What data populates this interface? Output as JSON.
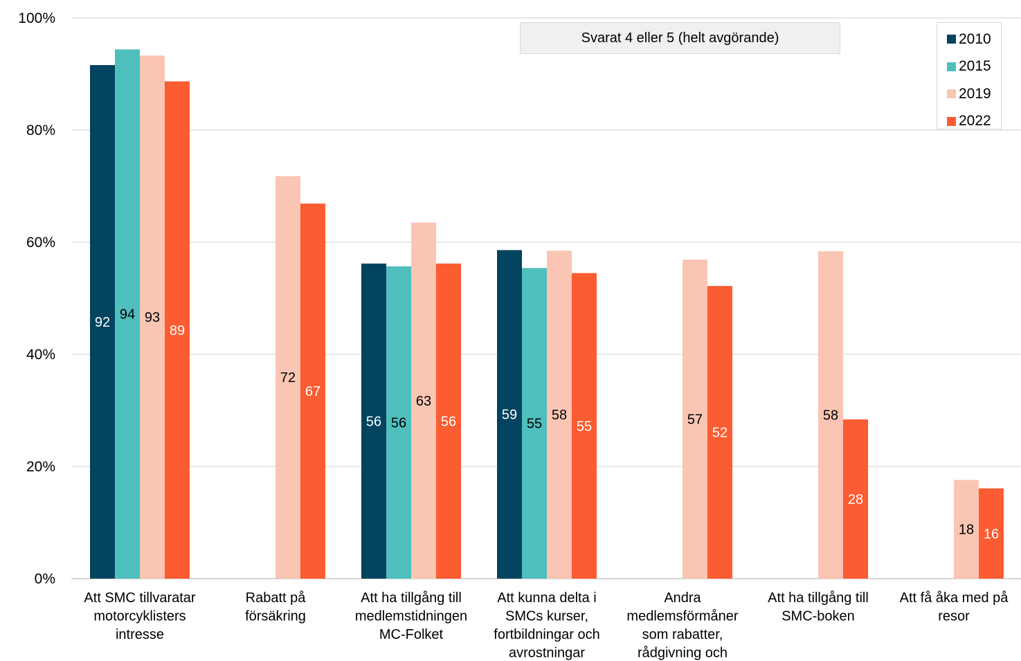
{
  "chart_data": {
    "type": "bar",
    "subtitle": "Svarat 4 eller 5 (helt avgörande)",
    "ylim": [
      0,
      100
    ],
    "yticks": [
      "0%",
      "20%",
      "40%",
      "60%",
      "80%",
      "100%"
    ],
    "grid": true,
    "legend_position": "top-right",
    "categories": [
      [
        "Att SMC tillvaratar",
        "motorcyklisters",
        "intresse"
      ],
      [
        "Rabatt på",
        "försäkring"
      ],
      [
        "Att ha tillgång till",
        "medlemstidningen",
        "MC-Folket"
      ],
      [
        "Att kunna delta i",
        "SMCs kurser,",
        "fortbildningar och",
        "avrostningar"
      ],
      [
        "Andra",
        "medlemsförmåner",
        "som rabatter,",
        "rådgivning och"
      ],
      [
        "Att ha tillgång till",
        "SMC-boken"
      ],
      [
        "Att få åka med på",
        "resor"
      ]
    ],
    "series": [
      {
        "name": "2010",
        "color": "#02445f",
        "label_color": "#ffffff",
        "values": [
          91.6,
          null,
          56.2,
          58.6,
          null,
          null,
          null
        ],
        "labels": [
          "92",
          null,
          "56",
          "59",
          null,
          null,
          null
        ]
      },
      {
        "name": "2015",
        "color": "#4fbfbd",
        "label_color": "#000000",
        "values": [
          94.4,
          null,
          55.7,
          55.4,
          null,
          null,
          null
        ],
        "labels": [
          "94",
          null,
          "56",
          "55",
          null,
          null,
          null
        ]
      },
      {
        "name": "2019",
        "color": "#fbc5b3",
        "label_color": "#000000",
        "values": [
          93.3,
          71.8,
          63.5,
          58.5,
          56.9,
          58.4,
          17.6
        ],
        "labels": [
          "93",
          "72",
          "63",
          "58",
          "57",
          "58",
          "18"
        ]
      },
      {
        "name": "2022",
        "color": "#fb5c32",
        "label_color": "#ffffff",
        "values": [
          88.7,
          66.9,
          56.2,
          54.5,
          52.2,
          28.4,
          16.1
        ],
        "labels": [
          "89",
          "67",
          "56",
          "55",
          "52",
          "28",
          "16"
        ]
      }
    ]
  }
}
